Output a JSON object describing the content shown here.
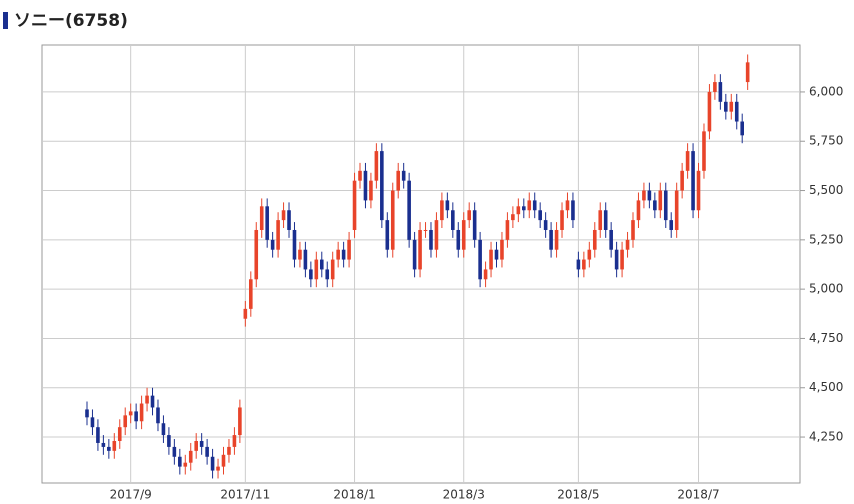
{
  "chart_data": {
    "type": "candlestick",
    "title": "ソニー(6758)",
    "up_color": "#e8442a",
    "down_color": "#1a2f8f",
    "grid": true,
    "ylim": [
      4017,
      6238
    ],
    "yticks": [
      {
        "value": 4250,
        "label": "4,250"
      },
      {
        "value": 4500,
        "label": "4,500"
      },
      {
        "value": 4750,
        "label": "4,750"
      },
      {
        "value": 5000,
        "label": "5,000"
      },
      {
        "value": 5250,
        "label": "5,250"
      },
      {
        "value": 5500,
        "label": "5,500"
      },
      {
        "value": 5750,
        "label": "5,750"
      },
      {
        "value": 6000,
        "label": "6,000"
      }
    ],
    "categories": [
      null,
      null,
      null,
      null,
      null,
      null,
      null,
      null,
      "2017/9",
      null,
      null,
      null,
      null,
      null,
      null,
      null,
      null,
      null,
      null,
      null,
      null,
      null,
      null,
      null,
      null,
      null,
      null,
      null,
      null,
      "2017/11",
      null,
      null,
      null,
      null,
      null,
      null,
      null,
      null,
      null,
      null,
      null,
      null,
      null,
      null,
      null,
      null,
      null,
      null,
      null,
      "2018/1",
      null,
      null,
      null,
      null,
      null,
      null,
      null,
      null,
      null,
      null,
      null,
      null,
      null,
      null,
      null,
      null,
      null,
      null,
      null,
      "2018/3",
      null,
      null,
      null,
      null,
      null,
      null,
      null,
      null,
      null,
      null,
      null,
      null,
      null,
      null,
      null,
      null,
      null,
      null,
      null,
      null,
      "2018/5",
      null,
      null,
      null,
      null,
      null,
      null,
      null,
      null,
      null,
      null,
      null,
      null,
      null,
      null,
      null,
      null,
      null,
      null,
      null,
      null,
      null,
      "2018/7",
      null,
      null,
      null,
      null,
      null,
      null,
      null,
      null,
      null
    ],
    "open": [
      4390,
      4350,
      4300,
      4220,
      4200,
      4180,
      4230,
      4300,
      4360,
      4380,
      4330,
      4420,
      4460,
      4400,
      4320,
      4260,
      4200,
      4150,
      4100,
      4120,
      4180,
      4230,
      4200,
      4150,
      4080,
      4100,
      4160,
      4200,
      4260,
      4850,
      4900,
      5050,
      5300,
      5420,
      5250,
      5200,
      5350,
      5400,
      5300,
      5150,
      5200,
      5100,
      5050,
      5150,
      5100,
      5050,
      5150,
      5200,
      5150,
      5300,
      5550,
      5600,
      5450,
      5550,
      5700,
      5350,
      5200,
      5500,
      5600,
      5550,
      5250,
      5100,
      5300,
      5300,
      5200,
      5350,
      5450,
      5400,
      5300,
      5200,
      5350,
      5400,
      5250,
      5050,
      5100,
      5200,
      5150,
      5250,
      5350,
      5380,
      5420,
      5400,
      5450,
      5400,
      5350,
      5300,
      5200,
      5300,
      5400,
      5450,
      5150,
      5100,
      5150,
      5200,
      5300,
      5400,
      5300,
      5200,
      5100,
      5200,
      5250,
      5350,
      5450,
      5500,
      5450,
      5400,
      5500,
      5350,
      5300,
      5500,
      5600,
      5700,
      5400,
      5600,
      5800,
      6000,
      6050,
      5950,
      5900,
      5950,
      5850,
      6050
    ],
    "high": [
      4430,
      4390,
      4340,
      4260,
      4240,
      4270,
      4340,
      4400,
      4420,
      4420,
      4460,
      4500,
      4500,
      4440,
      4360,
      4300,
      4240,
      4190,
      4160,
      4220,
      4270,
      4270,
      4240,
      4190,
      4140,
      4200,
      4240,
      4300,
      4440,
      4940,
      5090,
      5340,
      5460,
      5460,
      5290,
      5390,
      5440,
      5440,
      5340,
      5240,
      5240,
      5140,
      5190,
      5190,
      5140,
      5190,
      5240,
      5240,
      5290,
      5590,
      5640,
      5640,
      5590,
      5740,
      5740,
      5390,
      5540,
      5640,
      5640,
      5590,
      5290,
      5340,
      5340,
      5340,
      5390,
      5490,
      5490,
      5440,
      5340,
      5390,
      5440,
      5440,
      5290,
      5140,
      5240,
      5240,
      5290,
      5390,
      5420,
      5460,
      5460,
      5490,
      5490,
      5440,
      5390,
      5340,
      5340,
      5440,
      5490,
      5490,
      5190,
      5190,
      5240,
      5340,
      5440,
      5440,
      5340,
      5240,
      5240,
      5290,
      5390,
      5490,
      5540,
      5540,
      5490,
      5540,
      5540,
      5390,
      5540,
      5640,
      5740,
      5740,
      5640,
      5840,
      6040,
      6090,
      6090,
      5990,
      5990,
      5990,
      5890,
      6190
    ],
    "low": [
      4310,
      4260,
      4180,
      4160,
      4140,
      4140,
      4190,
      4260,
      4320,
      4290,
      4290,
      4380,
      4360,
      4280,
      4220,
      4160,
      4110,
      4060,
      4060,
      4080,
      4140,
      4160,
      4110,
      4040,
      4040,
      4060,
      4120,
      4160,
      4220,
      4810,
      4860,
      5010,
      5260,
      5210,
      5160,
      5160,
      5310,
      5260,
      5110,
      5110,
      5060,
      5010,
      5010,
      5060,
      5010,
      5010,
      5110,
      5110,
      5110,
      5260,
      5510,
      5410,
      5410,
      5510,
      5310,
      5160,
      5160,
      5460,
      5510,
      5210,
      5060,
      5060,
      5260,
      5160,
      5160,
      5310,
      5360,
      5260,
      5160,
      5160,
      5310,
      5210,
      5010,
      5010,
      5060,
      5110,
      5110,
      5210,
      5310,
      5340,
      5360,
      5360,
      5360,
      5310,
      5260,
      5160,
      5160,
      5260,
      5360,
      5310,
      5060,
      5060,
      5110,
      5160,
      5260,
      5260,
      5160,
      5060,
      5060,
      5160,
      5210,
      5310,
      5410,
      5410,
      5360,
      5360,
      5310,
      5260,
      5260,
      5460,
      5560,
      5360,
      5360,
      5560,
      5760,
      5960,
      5910,
      5860,
      5860,
      5810,
      5740,
      6010
    ],
    "close": [
      4350,
      4300,
      4220,
      4200,
      4180,
      4230,
      4300,
      4360,
      4380,
      4330,
      4420,
      4460,
      4400,
      4320,
      4260,
      4200,
      4150,
      4100,
      4120,
      4180,
      4230,
      4200,
      4150,
      4080,
      4100,
      4160,
      4200,
      4260,
      4400,
      4900,
      5050,
      5300,
      5420,
      5250,
      5200,
      5350,
      5400,
      5300,
      5150,
      5200,
      5100,
      5050,
      5150,
      5100,
      5050,
      5150,
      5200,
      5150,
      5250,
      5550,
      5600,
      5450,
      5550,
      5700,
      5350,
      5200,
      5500,
      5600,
      5550,
      5250,
      5100,
      5300,
      5300,
      5200,
      5350,
      5450,
      5400,
      5300,
      5200,
      5350,
      5400,
      5250,
      5050,
      5100,
      5200,
      5150,
      5250,
      5350,
      5380,
      5420,
      5400,
      5450,
      5400,
      5350,
      5300,
      5200,
      5300,
      5400,
      5450,
      5350,
      5100,
      5150,
      5200,
      5300,
      5400,
      5300,
      5200,
      5100,
      5200,
      5250,
      5350,
      5450,
      5500,
      5450,
      5400,
      5500,
      5350,
      5300,
      5500,
      5600,
      5700,
      5400,
      5600,
      5800,
      6000,
      6050,
      5950,
      5900,
      5950,
      5850,
      5780,
      6150
    ]
  }
}
